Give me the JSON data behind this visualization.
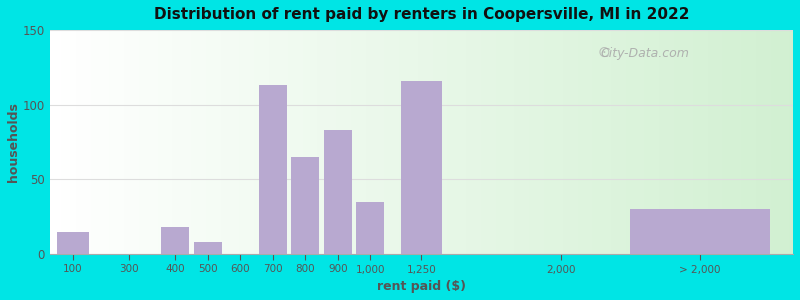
{
  "title": "Distribution of rent paid by renters in Coopersville, MI in 2022",
  "xlabel": "rent paid ($)",
  "ylabel": "households",
  "bar_color": "#b8a9d0",
  "bg_outer": "#00e5e5",
  "bg_inner_left": "#ffffff",
  "bg_inner_right": "#c8e8c8",
  "categories": [
    "100",
    "300",
    "400",
    "500",
    "600",
    "700",
    "800",
    "900",
    "1,000",
    "1,250",
    "2,000",
    "> 2,000"
  ],
  "values": [
    15,
    0,
    18,
    8,
    0,
    113,
    65,
    83,
    35,
    116,
    0,
    30
  ],
  "ylim": [
    0,
    150
  ],
  "yticks": [
    0,
    50,
    100,
    150
  ],
  "watermark": "City-Data.com",
  "grid_color": "#dddddd"
}
